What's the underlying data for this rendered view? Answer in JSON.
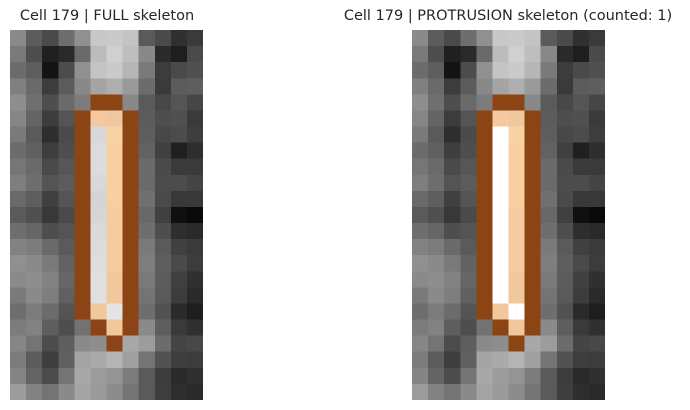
{
  "panels": [
    {
      "title": "Cell 179 | FULL skeleton",
      "cols": 12,
      "rows": 23,
      "image": [
        "#8a8a8a",
        "#5c5c5c",
        "#4a4a4a",
        "#6e6e6e",
        "#909090",
        "#c8c8c8",
        "#cacaca",
        "#c4c4c4",
        "#5a5a5a",
        "#4a4a4a",
        "#303030",
        "#3a3a3a",
        "#7a7a7a",
        "#4e4e4e",
        "#202020",
        "#2a2a2a",
        "#6a6a6a",
        "#bcbcbc",
        "#d0d0d0",
        "#bebebe",
        "#888888",
        "#2a2a2a",
        "#1e1e1e",
        "#4a4a4a",
        "#6c6c6c",
        "#5e5e5e",
        "#141414",
        "#4c4c4c",
        "#909090",
        "#c4c4c4",
        "#cacaca",
        "#b6b6b6",
        "#7a7a7a",
        "#3c3c3c",
        "#4a4a4a",
        "#505050",
        "#808080",
        "#6a6a6a",
        "#3c3c3c",
        "#5c5c5c",
        "#888888",
        "#a4a4a4",
        "#aeaeae",
        "#9a9a9a",
        "#6c6c6c",
        "#3a3a3a",
        "#5c5c5c",
        "#5e5e5e",
        "#8e8e8e",
        "#707070",
        "#4e4e4e",
        "#6a6a6a",
        "#7c7c7c",
        "#8c4414",
        "#8c4414",
        "#888888",
        "#5a5a5a",
        "#484848",
        "#555555",
        "#464646",
        "#868686",
        "#646464",
        "#3c3c3c",
        "#545454",
        "#8c4414",
        "#f5c8a0",
        "#f0c8a0",
        "#8c4414",
        "#5c5c5c",
        "#4e4e4e",
        "#505050",
        "#3a3a3a",
        "#7a7a7a",
        "#5a5a5a",
        "#2e2e2e",
        "#4a4a4a",
        "#8c4414",
        "#d8d8d8",
        "#f8d4a4",
        "#8c4414",
        "#5e5e5e",
        "#484848",
        "#4c4c4c",
        "#3e3e3e",
        "#6c6c6c",
        "#606060",
        "#3e3e3e",
        "#4e4e4e",
        "#8c4414",
        "#dcdcdc",
        "#f8d0a0",
        "#8c4414",
        "#626262",
        "#404040",
        "#202020",
        "#2e2e2e",
        "#767676",
        "#6a6a6a",
        "#4a4a4a",
        "#565656",
        "#8c4414",
        "#dcdcdc",
        "#f8d0a0",
        "#8c4414",
        "#6a6a6a",
        "#4a4a4a",
        "#3a3a3a",
        "#3a3a3a",
        "#7e7e7e",
        "#6e6e6e",
        "#545454",
        "#5c5c5c",
        "#8c4414",
        "#d8d8d8",
        "#f8d0a0",
        "#8c4414",
        "#6a6a6a",
        "#4c4c4c",
        "#4c4c4c",
        "#444444",
        "#6a6a6a",
        "#5e5e5e",
        "#404040",
        "#545454",
        "#8c4414",
        "#d4d4d4",
        "#f8d0a0",
        "#8c4414",
        "#707070",
        "#4a4a4a",
        "#383838",
        "#383838",
        "#5a5a5a",
        "#505050",
        "#383838",
        "#4a4a4a",
        "#8c4414",
        "#d6d6d6",
        "#f4cca0",
        "#8c4414",
        "#686868",
        "#404040",
        "#101010",
        "#0a0a0a",
        "#6e6e6e",
        "#666666",
        "#4e4e4e",
        "#545454",
        "#8c4414",
        "#dadada",
        "#f4cca0",
        "#8c4414",
        "#6e6e6e",
        "#4e4e4e",
        "#2e2e2e",
        "#2a2a2a",
        "#828282",
        "#7c7c7c",
        "#6a6a6a",
        "#5a5a5a",
        "#8c4414",
        "#dcdcdc",
        "#f4cca0",
        "#8c4414",
        "#7a7a7a",
        "#5a5a5a",
        "#404040",
        "#3a3a3a",
        "#909090",
        "#8a8a8a",
        "#7a7a7a",
        "#626262",
        "#8c4414",
        "#dedede",
        "#f4cca0",
        "#8c4414",
        "#7e7e7e",
        "#5e5e5e",
        "#4a4a4a",
        "#3c3c3c",
        "#8a8a8a",
        "#8e8e8e",
        "#828282",
        "#666666",
        "#8c4414",
        "#e0e0e0",
        "#f0c89c",
        "#8c4414",
        "#7a7a7a",
        "#5c5c5c",
        "#404040",
        "#303030",
        "#7a7a7a",
        "#8a8a8a",
        "#7e7e7e",
        "#606060",
        "#8c4414",
        "#e0e0e0",
        "#f0c89c",
        "#8c4414",
        "#747474",
        "#5a5a5a",
        "#3c3c3c",
        "#2a2a2a",
        "#6e6e6e",
        "#7c7c7c",
        "#6c6c6c",
        "#545454",
        "#8c4414",
        "#f0c89c",
        "#e4e4e4",
        "#8c4414",
        "#6e6e6e",
        "#525252",
        "#2a2a2a",
        "#1e1e1e",
        "#7c7c7c",
        "#828282",
        "#5e5e5e",
        "#4e4e4e",
        "#727272",
        "#8c4414",
        "#f0c89c",
        "#8c4414",
        "#8a8a8a",
        "#5e5e5e",
        "#3a3a3a",
        "#303030",
        "#868686",
        "#747474",
        "#4c4c4c",
        "#5e5e5e",
        "#8a8a8a",
        "#8e8e8e",
        "#8c4414",
        "#a8a8a8",
        "#9c9c9c",
        "#6c6c6c",
        "#444444",
        "#484848",
        "#7c7c7c",
        "#5c5c5c",
        "#3e3e3e",
        "#606060",
        "#a4a4a4",
        "#aaaaaa",
        "#b4b4b4",
        "#a0a0a0",
        "#747474",
        "#525252",
        "#3e3e3e",
        "#3c3c3c",
        "#848484",
        "#646464",
        "#4c4c4c",
        "#747474",
        "#a8a8a8",
        "#9c9c9c",
        "#949494",
        "#7c7c7c",
        "#5a5a5a",
        "#3c3c3c",
        "#2a2a2a",
        "#303030",
        "#9c9c9c",
        "#828282",
        "#747474",
        "#8a8a8a",
        "#a4a4a4",
        "#9a9a9a",
        "#8c8c8c",
        "#747474",
        "#5a5a5a",
        "#3e3e3e",
        "#2e2e2e",
        "#2a2a2a"
      ]
    },
    {
      "title": "Cell 179 | PROTRUSION skeleton (counted: 1)",
      "cols": 12,
      "rows": 23,
      "image": [
        "#8a8a8a",
        "#5c5c5c",
        "#4a4a4a",
        "#6e6e6e",
        "#909090",
        "#c8c8c8",
        "#cacaca",
        "#c4c4c4",
        "#5a5a5a",
        "#4a4a4a",
        "#303030",
        "#3a3a3a",
        "#7a7a7a",
        "#4e4e4e",
        "#202020",
        "#2a2a2a",
        "#6a6a6a",
        "#bcbcbc",
        "#d0d0d0",
        "#bebebe",
        "#888888",
        "#2a2a2a",
        "#1e1e1e",
        "#4a4a4a",
        "#6c6c6c",
        "#5e5e5e",
        "#141414",
        "#4c4c4c",
        "#909090",
        "#c4c4c4",
        "#cacaca",
        "#b6b6b6",
        "#7a7a7a",
        "#3c3c3c",
        "#4a4a4a",
        "#505050",
        "#808080",
        "#6a6a6a",
        "#3c3c3c",
        "#5c5c5c",
        "#888888",
        "#a4a4a4",
        "#aeaeae",
        "#9a9a9a",
        "#6c6c6c",
        "#3a3a3a",
        "#5c5c5c",
        "#5e5e5e",
        "#8e8e8e",
        "#707070",
        "#4e4e4e",
        "#6a6a6a",
        "#7c7c7c",
        "#8c4414",
        "#8c4414",
        "#888888",
        "#5a5a5a",
        "#484848",
        "#555555",
        "#464646",
        "#868686",
        "#646464",
        "#3c3c3c",
        "#545454",
        "#8c4414",
        "#f5c8a0",
        "#f0c8a0",
        "#8c4414",
        "#5c5c5c",
        "#4e4e4e",
        "#505050",
        "#3a3a3a",
        "#7a7a7a",
        "#5a5a5a",
        "#2e2e2e",
        "#4a4a4a",
        "#8c4414",
        "#ffffff",
        "#f8d4a4",
        "#8c4414",
        "#5e5e5e",
        "#484848",
        "#4c4c4c",
        "#3e3e3e",
        "#6c6c6c",
        "#606060",
        "#3e3e3e",
        "#4e4e4e",
        "#8c4414",
        "#ffffff",
        "#f8d0a0",
        "#8c4414",
        "#626262",
        "#404040",
        "#202020",
        "#2e2e2e",
        "#767676",
        "#6a6a6a",
        "#4a4a4a",
        "#565656",
        "#8c4414",
        "#ffffff",
        "#f8d0a0",
        "#8c4414",
        "#6a6a6a",
        "#4a4a4a",
        "#3a3a3a",
        "#3a3a3a",
        "#7e7e7e",
        "#6e6e6e",
        "#545454",
        "#5c5c5c",
        "#8c4414",
        "#ffffff",
        "#f8d0a0",
        "#8c4414",
        "#6a6a6a",
        "#4c4c4c",
        "#4c4c4c",
        "#444444",
        "#6a6a6a",
        "#5e5e5e",
        "#404040",
        "#545454",
        "#8c4414",
        "#ffffff",
        "#f8d0a0",
        "#8c4414",
        "#707070",
        "#4a4a4a",
        "#383838",
        "#383838",
        "#5a5a5a",
        "#505050",
        "#383838",
        "#4a4a4a",
        "#8c4414",
        "#ffffff",
        "#f4cca0",
        "#8c4414",
        "#686868",
        "#404040",
        "#101010",
        "#0a0a0a",
        "#6e6e6e",
        "#666666",
        "#4e4e4e",
        "#545454",
        "#8c4414",
        "#ffffff",
        "#f4cca0",
        "#8c4414",
        "#6e6e6e",
        "#4e4e4e",
        "#2e2e2e",
        "#2a2a2a",
        "#828282",
        "#7c7c7c",
        "#6a6a6a",
        "#5a5a5a",
        "#8c4414",
        "#ffffff",
        "#f4cca0",
        "#8c4414",
        "#7a7a7a",
        "#5a5a5a",
        "#404040",
        "#3a3a3a",
        "#909090",
        "#8a8a8a",
        "#7a7a7a",
        "#626262",
        "#8c4414",
        "#ffffff",
        "#f4cca0",
        "#8c4414",
        "#7e7e7e",
        "#5e5e5e",
        "#4a4a4a",
        "#3c3c3c",
        "#8a8a8a",
        "#8e8e8e",
        "#828282",
        "#666666",
        "#8c4414",
        "#ffffff",
        "#f0c89c",
        "#8c4414",
        "#7a7a7a",
        "#5c5c5c",
        "#404040",
        "#303030",
        "#7a7a7a",
        "#8a8a8a",
        "#7e7e7e",
        "#606060",
        "#8c4414",
        "#ffffff",
        "#f0c89c",
        "#8c4414",
        "#747474",
        "#5a5a5a",
        "#3c3c3c",
        "#2a2a2a",
        "#6e6e6e",
        "#7c7c7c",
        "#6c6c6c",
        "#545454",
        "#8c4414",
        "#f0c89c",
        "#ffffff",
        "#8c4414",
        "#6e6e6e",
        "#525252",
        "#2a2a2a",
        "#1e1e1e",
        "#7c7c7c",
        "#828282",
        "#5e5e5e",
        "#4e4e4e",
        "#727272",
        "#8c4414",
        "#f0c89c",
        "#8c4414",
        "#8a8a8a",
        "#5e5e5e",
        "#3a3a3a",
        "#303030",
        "#868686",
        "#747474",
        "#4c4c4c",
        "#5e5e5e",
        "#8a8a8a",
        "#8e8e8e",
        "#8c4414",
        "#a8a8a8",
        "#9c9c9c",
        "#6c6c6c",
        "#444444",
        "#484848",
        "#7c7c7c",
        "#5c5c5c",
        "#3e3e3e",
        "#606060",
        "#a4a4a4",
        "#aaaaaa",
        "#b4b4b4",
        "#a0a0a0",
        "#747474",
        "#525252",
        "#3e3e3e",
        "#3c3c3c",
        "#848484",
        "#646464",
        "#4c4c4c",
        "#747474",
        "#a8a8a8",
        "#9c9c9c",
        "#949494",
        "#7c7c7c",
        "#5a5a5a",
        "#3c3c3c",
        "#2a2a2a",
        "#303030",
        "#9c9c9c",
        "#828282",
        "#747474",
        "#8a8a8a",
        "#a4a4a4",
        "#9a9a9a",
        "#8c8c8c",
        "#747474",
        "#5a5a5a",
        "#3e3e3e",
        "#2e2e2e",
        "#2a2a2a"
      ]
    }
  ]
}
